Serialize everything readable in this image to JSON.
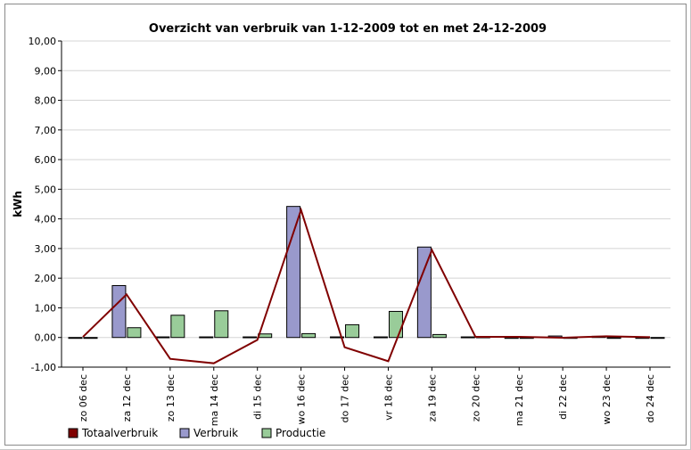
{
  "chart_data": {
    "type": "bar",
    "title": "Overzicht van verbruik van 1-12-2009 tot en met 24-12-2009",
    "xlabel": "",
    "ylabel": "kWh",
    "ylim": [
      -1,
      10
    ],
    "yticks": [
      "10,00",
      "9,00",
      "8,00",
      "7,00",
      "6,00",
      "5,00",
      "4,00",
      "3,00",
      "2,00",
      "1,00",
      "0,00",
      "-1,00"
    ],
    "ytick_values": [
      10,
      9,
      8,
      7,
      6,
      5,
      4,
      3,
      2,
      1,
      0,
      -1
    ],
    "grid": true,
    "legend_position": "bottom-left",
    "categories": [
      "zo 06 dec",
      "za 12 dec",
      "zo 13 dec",
      "ma 14 dec",
      "di 15 dec",
      "wo 16 dec",
      "do 17 dec",
      "vr 18 dec",
      "za 19 dec",
      "zo 20 dec",
      "ma 21 dec",
      "di 22 dec",
      "wo 23 dec",
      "do 24 dec"
    ],
    "series": [
      {
        "name": "Totaalverbruik",
        "kind": "line",
        "color": "#800000",
        "values": [
          0.02,
          1.45,
          -0.72,
          -0.87,
          -0.08,
          4.3,
          -0.33,
          -0.8,
          2.95,
          0.02,
          0.02,
          -0.01,
          0.04,
          0.01
        ]
      },
      {
        "name": "Verbruik",
        "kind": "bar",
        "color": "#9999cc",
        "values": [
          0,
          1.75,
          0.02,
          0.02,
          0.02,
          4.42,
          0.02,
          0.02,
          3.05,
          0.02,
          0,
          0.05,
          0.04,
          0
        ]
      },
      {
        "name": "Productie",
        "kind": "bar",
        "color": "#99cc99",
        "values": [
          0,
          0.33,
          0.75,
          0.9,
          0.12,
          0.13,
          0.43,
          0.88,
          0.1,
          0.02,
          0,
          0,
          0,
          0
        ]
      }
    ]
  }
}
